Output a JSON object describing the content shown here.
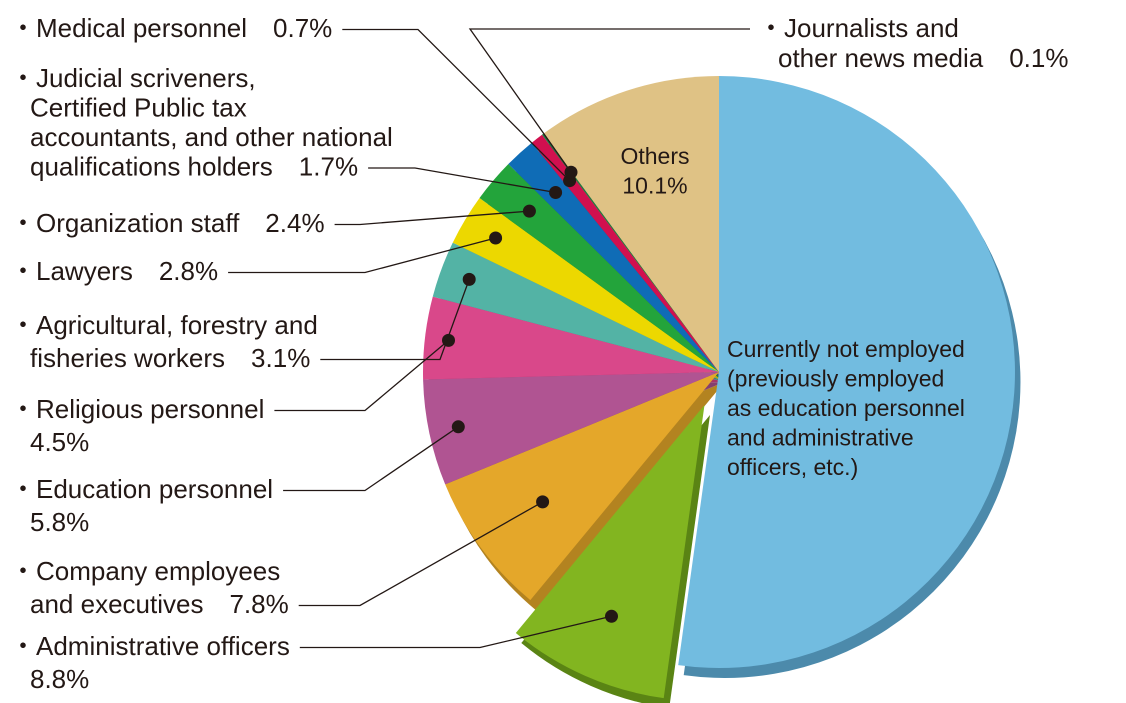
{
  "chart_data": {
    "type": "pie",
    "title": "",
    "unit": "%",
    "slices": [
      {
        "label": "Currently not employed (previously employed as education personnel and administrative officers, etc.)",
        "label_lines": [
          "Currently not employed",
          "(previously employed",
          "as education personnel",
          "and administrative",
          "officers, etc.)"
        ],
        "value": 52.2,
        "value_text": "52.2%",
        "color": "#72bce0",
        "side": "#4c8aab"
      },
      {
        "label": "Administrative officers",
        "label_lines": [
          "・Administrative officers",
          "8.8%"
        ],
        "value": 8.8,
        "value_text": "8.8%",
        "color": "#82b520",
        "side": "#5a8414",
        "exploded": true
      },
      {
        "label": "Company employees and executives",
        "label_lines": [
          "・Company employees",
          "and executives　7.8%"
        ],
        "value": 7.8,
        "value_text": "7.8%",
        "color": "#e4a72a",
        "side": "#b38320"
      },
      {
        "label": "Education personnel",
        "label_lines": [
          "・Education personnel",
          "5.8%"
        ],
        "value": 5.8,
        "value_text": "5.8%",
        "color": "#b05492",
        "side": "#853f6e"
      },
      {
        "label": "Religious personnel",
        "label_lines": [
          "・Religious personnel",
          "4.5%"
        ],
        "value": 4.5,
        "value_text": "4.5%",
        "color": "#d9488a",
        "side": "#a93468"
      },
      {
        "label": "Agricultural, forestry and fisheries workers",
        "label_lines": [
          "・Agricultural, forestry and",
          "fisheries workers　3.1%"
        ],
        "value": 3.1,
        "value_text": "3.1%",
        "color": "#53b3a5",
        "side": "#3b857a"
      },
      {
        "label": "Lawyers",
        "label_lines": [
          "・Lawyers　2.8%"
        ],
        "value": 2.8,
        "value_text": "2.8%",
        "color": "#ecd800",
        "side": "#b8a800"
      },
      {
        "label": "Organization staff",
        "label_lines": [
          "・Organization staff　2.4%"
        ],
        "value": 2.4,
        "value_text": "2.4%",
        "color": "#23a43b",
        "side": "#187a2b"
      },
      {
        "label": "Judicial scriveners, Certified Public tax accountants, and other national qualifications holders",
        "label_lines": [
          "・Judicial scriveners,",
          "Certified Public tax",
          "accountants, and other national",
          "qualifications holders　1.7%"
        ],
        "value": 1.7,
        "value_text": "1.7%",
        "color": "#0f6cb6",
        "side": "#0a4f86"
      },
      {
        "label": "Medical personnel",
        "label_lines": [
          "・Medical personnel　0.7%"
        ],
        "value": 0.7,
        "value_text": "0.7%",
        "color": "#d1104f",
        "side": "#9c0c3a"
      },
      {
        "label": "Journalists and other news media",
        "label_lines": [
          "・Journalists and",
          "other news media　0.1%"
        ],
        "value": 0.1,
        "value_text": "0.1%",
        "color": "#1f7a40",
        "side": "#145a2e"
      },
      {
        "label": "Others",
        "label_lines": [
          "Others",
          "10.1%"
        ],
        "value": 10.1,
        "value_text": "10.1%",
        "color": "#dfc285",
        "side": "#b79a60"
      }
    ],
    "legend": "none"
  }
}
